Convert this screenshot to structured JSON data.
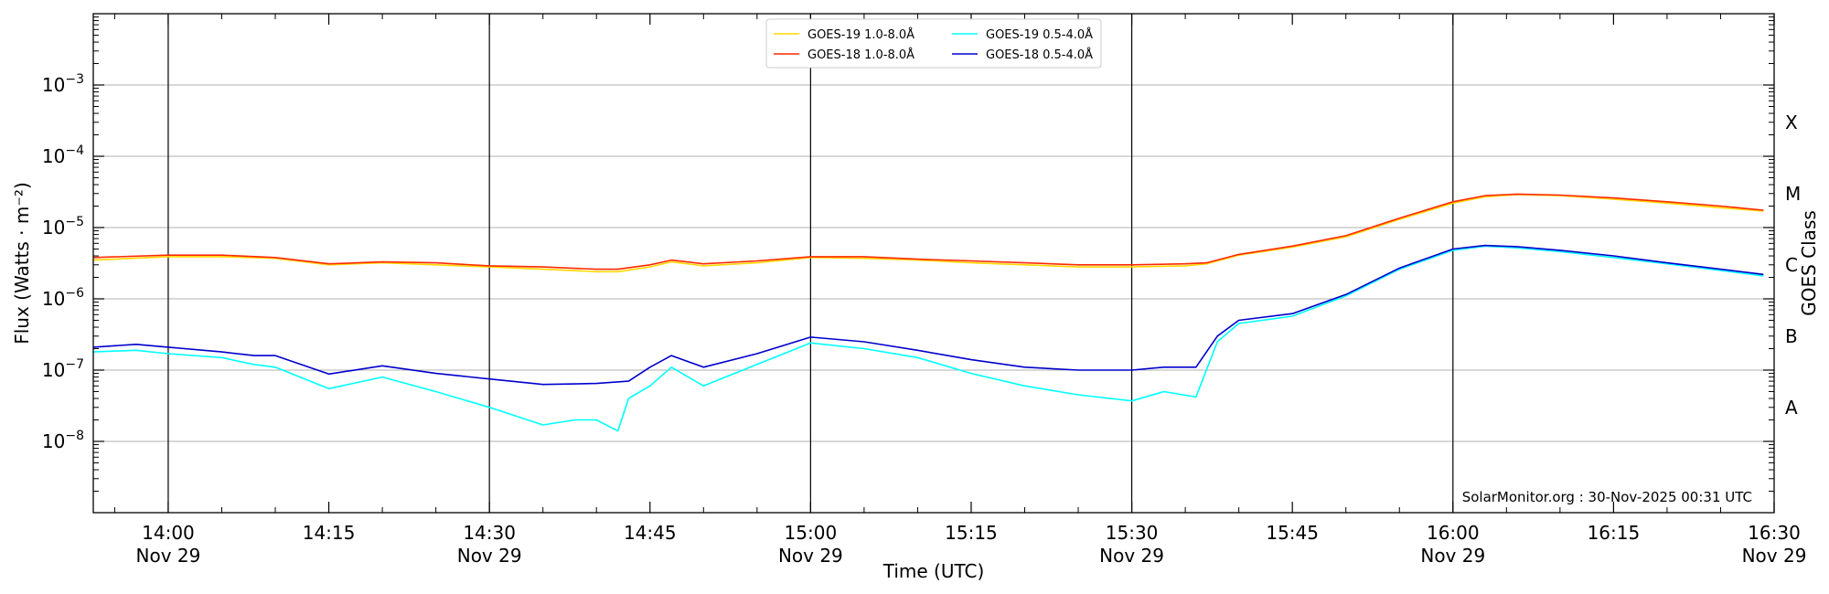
{
  "chart_data": {
    "type": "line",
    "xlabel": "Time (UTC)",
    "ylabel": "Flux (Watts · m⁻²)",
    "ylabel_right": "GOES Class",
    "xlim": [
      "13:53",
      "16:30"
    ],
    "ylim": [
      1e-09,
      0.01
    ],
    "yscale": "log",
    "grid": "horizontal",
    "legend_position": "top-center",
    "x_ticks": [
      {
        "time": "14:00",
        "label": "14:00",
        "sublabel": "Nov 29",
        "major": true
      },
      {
        "time": "14:15",
        "label": "14:15",
        "sublabel": "",
        "major": false
      },
      {
        "time": "14:30",
        "label": "14:30",
        "sublabel": "Nov 29",
        "major": true
      },
      {
        "time": "14:45",
        "label": "14:45",
        "sublabel": "",
        "major": false
      },
      {
        "time": "15:00",
        "label": "15:00",
        "sublabel": "Nov 29",
        "major": true
      },
      {
        "time": "15:15",
        "label": "15:15",
        "sublabel": "",
        "major": false
      },
      {
        "time": "15:30",
        "label": "15:30",
        "sublabel": "Nov 29",
        "major": true
      },
      {
        "time": "15:45",
        "label": "15:45",
        "sublabel": "",
        "major": false
      },
      {
        "time": "16:00",
        "label": "16:00",
        "sublabel": "Nov 29",
        "major": true
      },
      {
        "time": "16:15",
        "label": "16:15",
        "sublabel": "",
        "major": false
      },
      {
        "time": "16:30",
        "label": "16:30",
        "sublabel": "Nov 29",
        "major": true
      }
    ],
    "y_ticks": [
      {
        "value": 1e-08,
        "base": "10",
        "exp": "−8"
      },
      {
        "value": 1e-07,
        "base": "10",
        "exp": "−7"
      },
      {
        "value": 1e-06,
        "base": "10",
        "exp": "−6"
      },
      {
        "value": 1e-05,
        "base": "10",
        "exp": "−5"
      },
      {
        "value": 0.0001,
        "base": "10",
        "exp": "−4"
      },
      {
        "value": 0.001,
        "base": "10",
        "exp": "−3"
      }
    ],
    "goes_classes": [
      {
        "label": "A",
        "value": 3e-08
      },
      {
        "label": "B",
        "value": 3e-07
      },
      {
        "label": "C",
        "value": 3e-06
      },
      {
        "label": "M",
        "value": 3e-05
      },
      {
        "label": "X",
        "value": 0.0003
      }
    ],
    "credit": "SolarMonitor.org : 30-Nov-2025 00:31 UTC",
    "series": [
      {
        "name": "GOES-19 1.0-8.0Å",
        "color": "#ffd700",
        "points": [
          [
            "13:53",
            3.5e-06
          ],
          [
            "14:00",
            3.9e-06
          ],
          [
            "14:05",
            3.9e-06
          ],
          [
            "14:10",
            3.7e-06
          ],
          [
            "14:15",
            3e-06
          ],
          [
            "14:20",
            3.2e-06
          ],
          [
            "14:25",
            3e-06
          ],
          [
            "14:30",
            2.8e-06
          ],
          [
            "14:35",
            2.6e-06
          ],
          [
            "14:40",
            2.4e-06
          ],
          [
            "14:42",
            2.4e-06
          ],
          [
            "14:45",
            2.8e-06
          ],
          [
            "14:47",
            3.3e-06
          ],
          [
            "14:50",
            2.9e-06
          ],
          [
            "14:55",
            3.2e-06
          ],
          [
            "15:00",
            3.8e-06
          ],
          [
            "15:05",
            3.7e-06
          ],
          [
            "15:10",
            3.5e-06
          ],
          [
            "15:15",
            3.2e-06
          ],
          [
            "15:20",
            3e-06
          ],
          [
            "15:25",
            2.8e-06
          ],
          [
            "15:30",
            2.8e-06
          ],
          [
            "15:35",
            2.9e-06
          ],
          [
            "15:37",
            3.1e-06
          ],
          [
            "15:40",
            4.1e-06
          ],
          [
            "15:45",
            5.3e-06
          ],
          [
            "15:50",
            7.4e-06
          ],
          [
            "15:55",
            1.3e-05
          ],
          [
            "16:00",
            2.2e-05
          ],
          [
            "16:03",
            2.7e-05
          ],
          [
            "16:06",
            2.9e-05
          ],
          [
            "16:10",
            2.8e-05
          ],
          [
            "16:15",
            2.5e-05
          ],
          [
            "16:20",
            2.2e-05
          ],
          [
            "16:25",
            1.9e-05
          ],
          [
            "16:29",
            1.7e-05
          ]
        ]
      },
      {
        "name": "GOES-18 1.0-8.0Å",
        "color": "#ff2a00",
        "points": [
          [
            "13:53",
            3.8e-06
          ],
          [
            "14:00",
            4.1e-06
          ],
          [
            "14:05",
            4.1e-06
          ],
          [
            "14:10",
            3.8e-06
          ],
          [
            "14:15",
            3.1e-06
          ],
          [
            "14:20",
            3.3e-06
          ],
          [
            "14:25",
            3.2e-06
          ],
          [
            "14:30",
            2.9e-06
          ],
          [
            "14:35",
            2.8e-06
          ],
          [
            "14:40",
            2.6e-06
          ],
          [
            "14:42",
            2.6e-06
          ],
          [
            "14:45",
            3e-06
          ],
          [
            "14:47",
            3.5e-06
          ],
          [
            "14:50",
            3.1e-06
          ],
          [
            "14:55",
            3.4e-06
          ],
          [
            "15:00",
            3.9e-06
          ],
          [
            "15:05",
            3.9e-06
          ],
          [
            "15:10",
            3.6e-06
          ],
          [
            "15:15",
            3.4e-06
          ],
          [
            "15:20",
            3.2e-06
          ],
          [
            "15:25",
            3e-06
          ],
          [
            "15:30",
            3e-06
          ],
          [
            "15:35",
            3.1e-06
          ],
          [
            "15:37",
            3.2e-06
          ],
          [
            "15:40",
            4.2e-06
          ],
          [
            "15:45",
            5.5e-06
          ],
          [
            "15:50",
            7.7e-06
          ],
          [
            "15:55",
            1.35e-05
          ],
          [
            "16:00",
            2.3e-05
          ],
          [
            "16:03",
            2.8e-05
          ],
          [
            "16:06",
            2.95e-05
          ],
          [
            "16:10",
            2.85e-05
          ],
          [
            "16:15",
            2.6e-05
          ],
          [
            "16:20",
            2.3e-05
          ],
          [
            "16:25",
            2e-05
          ],
          [
            "16:29",
            1.75e-05
          ]
        ]
      },
      {
        "name": "GOES-19 0.5-4.0Å",
        "color": "#00ffff",
        "points": [
          [
            "13:53",
            1.8e-07
          ],
          [
            "13:57",
            1.9e-07
          ],
          [
            "14:00",
            1.7e-07
          ],
          [
            "14:05",
            1.5e-07
          ],
          [
            "14:08",
            1.2e-07
          ],
          [
            "14:10",
            1.1e-07
          ],
          [
            "14:15",
            5.5e-08
          ],
          [
            "14:20",
            8e-08
          ],
          [
            "14:25",
            5e-08
          ],
          [
            "14:30",
            3e-08
          ],
          [
            "14:35",
            1.7e-08
          ],
          [
            "14:38",
            2e-08
          ],
          [
            "14:40",
            2e-08
          ],
          [
            "14:42",
            1.4e-08
          ],
          [
            "14:43",
            4e-08
          ],
          [
            "14:45",
            6e-08
          ],
          [
            "14:47",
            1.1e-07
          ],
          [
            "14:50",
            6e-08
          ],
          [
            "14:55",
            1.2e-07
          ],
          [
            "15:00",
            2.4e-07
          ],
          [
            "15:05",
            2e-07
          ],
          [
            "15:10",
            1.5e-07
          ],
          [
            "15:15",
            9e-08
          ],
          [
            "15:20",
            6e-08
          ],
          [
            "15:25",
            4.5e-08
          ],
          [
            "15:30",
            3.7e-08
          ],
          [
            "15:33",
            5e-08
          ],
          [
            "15:36",
            4.2e-08
          ],
          [
            "15:38",
            2.5e-07
          ],
          [
            "15:40",
            4.5e-07
          ],
          [
            "15:45",
            5.7e-07
          ],
          [
            "15:50",
            1.1e-06
          ],
          [
            "15:55",
            2.6e-06
          ],
          [
            "16:00",
            4.8e-06
          ],
          [
            "16:03",
            5.5e-06
          ],
          [
            "16:06",
            5.2e-06
          ],
          [
            "16:10",
            4.6e-06
          ],
          [
            "16:15",
            3.8e-06
          ],
          [
            "16:20",
            3.1e-06
          ],
          [
            "16:25",
            2.5e-06
          ],
          [
            "16:29",
            2.1e-06
          ]
        ]
      },
      {
        "name": "GOES-18 0.5-4.0Å",
        "color": "#0000cd",
        "points": [
          [
            "13:53",
            2.1e-07
          ],
          [
            "13:57",
            2.3e-07
          ],
          [
            "14:00",
            2.1e-07
          ],
          [
            "14:05",
            1.8e-07
          ],
          [
            "14:08",
            1.6e-07
          ],
          [
            "14:10",
            1.6e-07
          ],
          [
            "14:15",
            8.8e-08
          ],
          [
            "14:20",
            1.15e-07
          ],
          [
            "14:25",
            9e-08
          ],
          [
            "14:30",
            7.5e-08
          ],
          [
            "14:35",
            6.3e-08
          ],
          [
            "14:40",
            6.5e-08
          ],
          [
            "14:43",
            7e-08
          ],
          [
            "14:45",
            1.1e-07
          ],
          [
            "14:47",
            1.6e-07
          ],
          [
            "14:50",
            1.1e-07
          ],
          [
            "14:55",
            1.7e-07
          ],
          [
            "15:00",
            2.9e-07
          ],
          [
            "15:05",
            2.5e-07
          ],
          [
            "15:10",
            1.9e-07
          ],
          [
            "15:15",
            1.4e-07
          ],
          [
            "15:20",
            1.1e-07
          ],
          [
            "15:25",
            1e-07
          ],
          [
            "15:30",
            1e-07
          ],
          [
            "15:33",
            1.1e-07
          ],
          [
            "15:36",
            1.1e-07
          ],
          [
            "15:38",
            3e-07
          ],
          [
            "15:40",
            5e-07
          ],
          [
            "15:45",
            6.2e-07
          ],
          [
            "15:50",
            1.15e-06
          ],
          [
            "15:55",
            2.7e-06
          ],
          [
            "16:00",
            5e-06
          ],
          [
            "16:03",
            5.6e-06
          ],
          [
            "16:06",
            5.4e-06
          ],
          [
            "16:10",
            4.8e-06
          ],
          [
            "16:15",
            4e-06
          ],
          [
            "16:20",
            3.2e-06
          ],
          [
            "16:25",
            2.6e-06
          ],
          [
            "16:29",
            2.2e-06
          ]
        ]
      }
    ]
  }
}
